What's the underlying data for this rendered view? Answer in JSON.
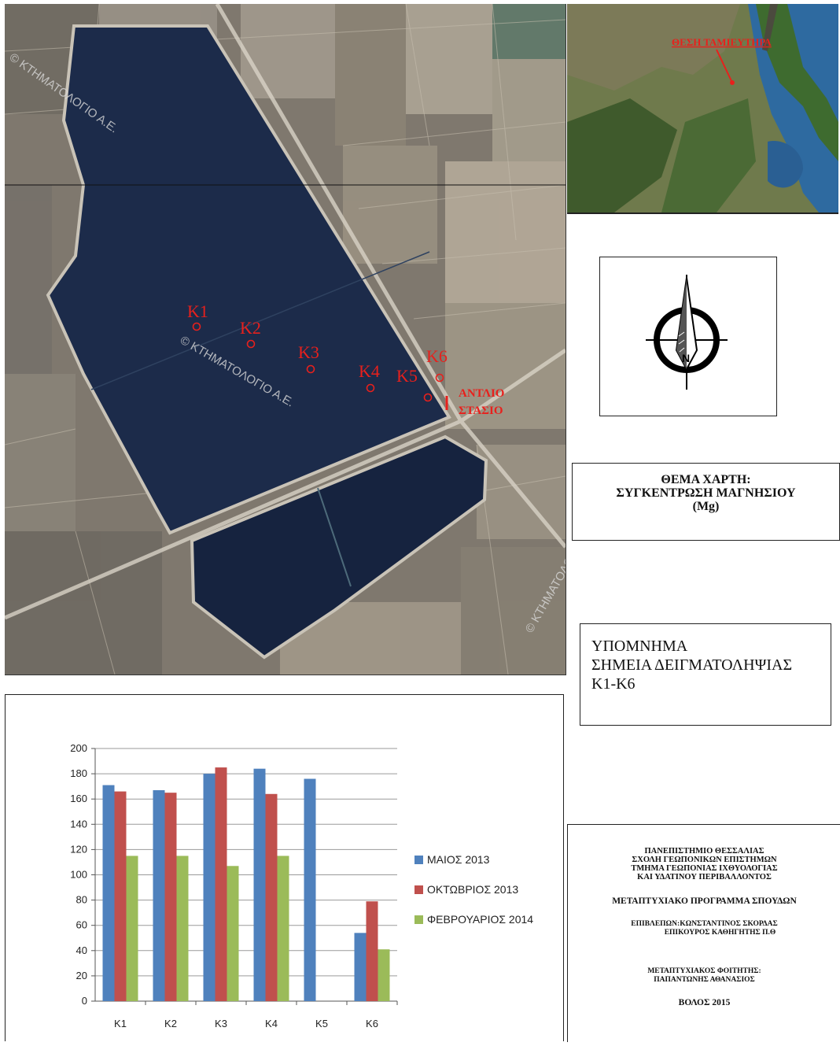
{
  "map": {
    "sampling_points": [
      "K1",
      "K2",
      "K3",
      "K4",
      "K5",
      "K6"
    ],
    "station_label_line1": "ΑΝΤΛΙΟ",
    "station_label_line2": "ΣΤΑΣΙΟ",
    "watermark": "© ΚΤΗΜΑΤΟΛΟΓΙΟ Α.Ε.",
    "colors": {
      "water": "#1c2b4a",
      "fields": "#8f877c",
      "marker": "#e8201c"
    }
  },
  "inset": {
    "label": "ΘΕΣΗ ΤΑΜΙΕΥΤΗΡΑ"
  },
  "compass": {
    "north_letter": "N"
  },
  "subject": {
    "line1": "ΘΕΜΑ ΧΑΡΤΗ:",
    "line2": "ΣΥΓΚΕΝΤΡΩΣΗ ΜΑΓΝΗΣΙΟΥ",
    "line3": "(Mg)"
  },
  "legend": {
    "line1": "ΥΠΟΜΝΗΜΑ",
    "line2": "ΣΗΜΕΙΑ ΔΕΙΓΜΑΤΟΛΗΨΙΑΣ",
    "line3": "Κ1-Κ6"
  },
  "credits": {
    "uni1": "ΠΑΝΕΠΙΣΤΗΜΙΟ ΘΕΣΣΑΛΙΑΣ",
    "uni2": "ΣΧΟΛΗ ΓΕΩΠΟΝΙΚΩΝ ΕΠΙΣΤΗΜΩΝ",
    "uni3": "ΤΜΗΜΑ ΓΕΩΠΟΝΙΑΣ ΙΧΘΥΟΛΟΓΙΑΣ",
    "uni4": "ΚΑΙ ΥΔΑΤΙΝΟΥ ΠΕΡΙΒΑΛΛΟΝΤΟΣ",
    "program": "ΜΕΤΑΠΤΥΧΙΑΚΟ ΠΡΟΓΡΑΜΜΑ ΣΠΟΥΔΩΝ",
    "supervisor1": "ΕΠΙΒΛΕΠΩΝ:ΚΩΝΣΤΑΝΤΙΝΟΣ ΣΚΟΡΔΑΣ",
    "supervisor2": "ΕΠΙΚΟΥΡΟΣ ΚΑΘΗΓΗΤΗΣ Π.Θ",
    "student1": "ΜΕΤΑΠΤΥΧΙΑΚΟΣ ΦΟΙΤΗΤΗΣ:",
    "student2": "ΠΑΠΑΝΤΩΝΗΣ ΑΘΑΝΑΣΙΟΣ",
    "place": "ΒΟΛΟΣ 2015"
  },
  "chart_data": {
    "type": "bar",
    "categories": [
      "K1",
      "K2",
      "K3",
      "K4",
      "K5",
      "K6"
    ],
    "ylim": [
      0,
      200
    ],
    "yticks": [
      0,
      20,
      40,
      60,
      80,
      100,
      120,
      140,
      160,
      180,
      200
    ],
    "grid": true,
    "legend_position": "right",
    "series": [
      {
        "name": "ΜΑΙΟΣ 2013",
        "color": "#4f81bd",
        "values": [
          171,
          167,
          180,
          184,
          176,
          54
        ]
      },
      {
        "name": "ΟΚΤΩΒΡΙΟΣ 2013",
        "color": "#c0504d",
        "values": [
          166,
          165,
          185,
          164,
          null,
          79
        ]
      },
      {
        "name": "ΦΕΒΡΟΥΑΡΙΟΣ 2014",
        "color": "#9bbb59",
        "values": [
          115,
          115,
          107,
          115,
          null,
          41
        ]
      }
    ]
  }
}
